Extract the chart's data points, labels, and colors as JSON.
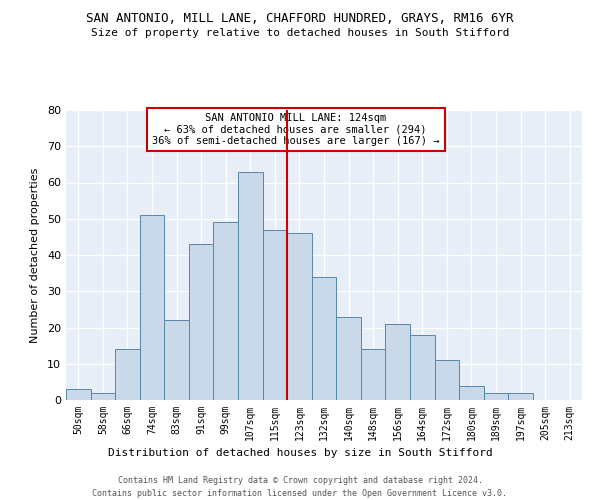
{
  "title": "SAN ANTONIO, MILL LANE, CHAFFORD HUNDRED, GRAYS, RM16 6YR",
  "subtitle": "Size of property relative to detached houses in South Stifford",
  "xlabel": "Distribution of detached houses by size in South Stifford",
  "ylabel": "Number of detached properties",
  "categories": [
    "50sqm",
    "58sqm",
    "66sqm",
    "74sqm",
    "83sqm",
    "91sqm",
    "99sqm",
    "107sqm",
    "115sqm",
    "123sqm",
    "132sqm",
    "140sqm",
    "148sqm",
    "156sqm",
    "164sqm",
    "172sqm",
    "180sqm",
    "189sqm",
    "197sqm",
    "205sqm",
    "213sqm"
  ],
  "bar_values": [
    3,
    2,
    14,
    51,
    22,
    43,
    49,
    63,
    47,
    46,
    34,
    23,
    14,
    21,
    18,
    11,
    4,
    2,
    2,
    0,
    0
  ],
  "bar_color": "#c9d9ea",
  "bar_edge_color": "#5588aa",
  "vline_color": "#cc0000",
  "annotation_title": "SAN ANTONIO MILL LANE: 124sqm",
  "annotation_line1": "← 63% of detached houses are smaller (294)",
  "annotation_line2": "36% of semi-detached houses are larger (167) →",
  "ylim": [
    0,
    80
  ],
  "yticks": [
    0,
    10,
    20,
    30,
    40,
    50,
    60,
    70,
    80
  ],
  "background_color": "#e8eef8",
  "footer_line1": "Contains HM Land Registry data © Crown copyright and database right 2024.",
  "footer_line2": "Contains public sector information licensed under the Open Government Licence v3.0."
}
